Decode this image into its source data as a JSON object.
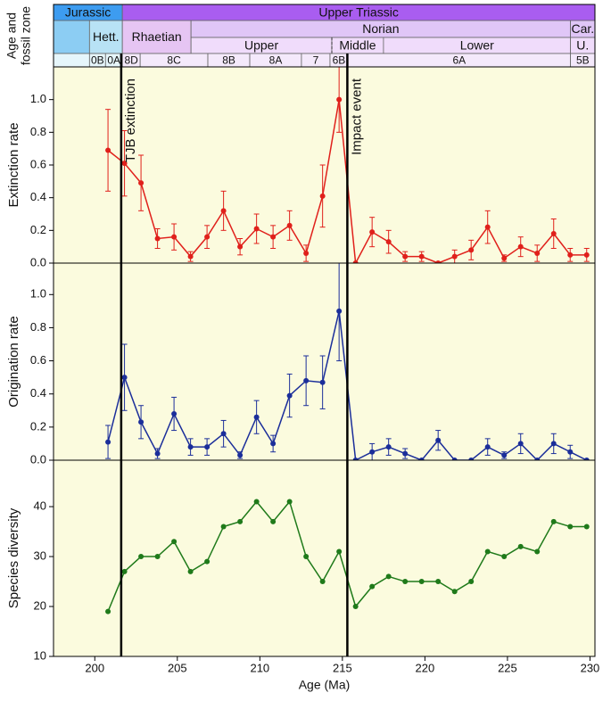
{
  "timescale": {
    "label": [
      "Age and",
      "fossil zone"
    ],
    "rows": [
      [
        {
          "name": "Jurassic",
          "start": 197.5,
          "end": 201.67,
          "color": "#3d9cf0"
        },
        {
          "name": "Upper Triassic",
          "start": 201.67,
          "end": 230.3,
          "color": "#a95df0"
        }
      ],
      [
        {
          "start": 197.5,
          "end": 199.68,
          "color": "#8ccdf3"
        },
        {
          "name": "Hett.",
          "start": 199.68,
          "end": 201.67,
          "color": "#b8e2f5"
        },
        {
          "name": "Rhaetian",
          "start": 201.67,
          "end": 205.83,
          "color": "#e6c5f3"
        },
        {
          "name": "Norian",
          "start": 205.83,
          "end": 228.82,
          "color": "#e0c6f7"
        },
        {
          "name": "Car.",
          "start": 228.82,
          "end": 230.3,
          "color": "#e0c6f7"
        }
      ],
      [
        {
          "name": "Upper",
          "start": 205.83,
          "end": 214.36,
          "color": "#f0dcfb"
        },
        {
          "name": "Middle",
          "start": 214.36,
          "end": 217.49,
          "color": "#f0dcfb",
          "border_left": "dashed"
        },
        {
          "name": "Lower",
          "start": 217.49,
          "end": 228.82,
          "color": "#f0dcfb"
        },
        {
          "name": "U.",
          "start": 228.82,
          "end": 230.3,
          "color": "#f0dcfb"
        }
      ],
      [
        {
          "start": 197.5,
          "end": 199.68,
          "color": "#e6f6fb"
        },
        {
          "name": "0B",
          "start": 199.68,
          "end": 200.65,
          "color": "#e6f6fb"
        },
        {
          "name": "0A",
          "start": 200.65,
          "end": 201.67,
          "color": "#e6f6fb"
        },
        {
          "name": "8D",
          "start": 201.67,
          "end": 202.75,
          "color": "#f4e9fb"
        },
        {
          "name": "8C",
          "start": 202.75,
          "end": 206.85,
          "color": "#f4e9fb"
        },
        {
          "name": "8B",
          "start": 206.85,
          "end": 209.39,
          "color": "#f4e9fb"
        },
        {
          "name": "8A",
          "start": 209.39,
          "end": 212.52,
          "color": "#f4e9fb"
        },
        {
          "name": "7",
          "start": 212.52,
          "end": 214.25,
          "color": "#f4e9fb"
        },
        {
          "name": "6B",
          "start": 214.25,
          "end": 215.33,
          "color": "#f4e9fb"
        },
        {
          "name": "6A",
          "start": 215.33,
          "end": 228.82,
          "color": "#f4e9fb"
        },
        {
          "name": "5B",
          "start": 228.82,
          "end": 230.3,
          "color": "#f4e9fb"
        }
      ]
    ]
  },
  "chart_data": [
    {
      "type": "line",
      "ylabel": "Extinction rate",
      "color": "#e0201b",
      "x": [
        200.8,
        201.8,
        202.8,
        203.8,
        204.8,
        205.8,
        206.8,
        207.8,
        208.8,
        209.8,
        210.8,
        211.8,
        212.8,
        213.8,
        214.8,
        215.8,
        216.8,
        217.8,
        218.8,
        219.8,
        220.8,
        221.8,
        222.8,
        223.8,
        224.8,
        225.8,
        226.8,
        227.8,
        228.8,
        229.8
      ],
      "values": [
        0.69,
        0.61,
        0.49,
        0.15,
        0.16,
        0.04,
        0.16,
        0.32,
        0.1,
        0.21,
        0.16,
        0.23,
        0.06,
        0.41,
        1.0,
        0.0,
        0.19,
        0.13,
        0.04,
        0.04,
        0.0,
        0.04,
        0.08,
        0.22,
        0.03,
        0.1,
        0.06,
        0.18,
        0.05,
        0.05
      ],
      "errors": [
        0.25,
        0.2,
        0.17,
        0.06,
        0.08,
        0.03,
        0.07,
        0.12,
        0.05,
        0.09,
        0.07,
        0.09,
        0.05,
        0.19,
        0.2,
        0,
        0.09,
        0.07,
        0.03,
        0.03,
        0,
        0.04,
        0.06,
        0.1,
        0.02,
        0.06,
        0.05,
        0.09,
        0.04,
        0.04
      ],
      "xlim": [
        197.5,
        230.3
      ],
      "xticks": [
        200,
        205,
        210,
        215,
        220,
        225,
        230
      ],
      "ylim": [
        0,
        1.2
      ],
      "yticks": [
        {
          "value": 0,
          "label": "0.0"
        },
        0.2,
        0.4,
        0.6,
        0.8,
        {
          "value": 1,
          "label": "1.0"
        }
      ],
      "annotations": [
        {
          "x": 201.6,
          "text": "TJB extinction"
        },
        {
          "x": 215.3,
          "text": "Impact event"
        }
      ]
    },
    {
      "type": "line",
      "ylabel": "Origination rate",
      "color": "#1b2e9a",
      "x": [
        200.8,
        201.8,
        202.8,
        203.8,
        204.8,
        205.8,
        206.8,
        207.8,
        208.8,
        209.8,
        210.8,
        211.8,
        212.8,
        213.8,
        214.8,
        215.8,
        216.8,
        217.8,
        218.8,
        219.8,
        220.8,
        221.8,
        222.8,
        223.8,
        224.8,
        225.8,
        226.8,
        227.8,
        228.8,
        229.8
      ],
      "values": [
        0.11,
        0.5,
        0.23,
        0.04,
        0.28,
        0.08,
        0.08,
        0.16,
        0.03,
        0.26,
        0.1,
        0.39,
        0.48,
        0.47,
        0.9,
        0,
        0.05,
        0.08,
        0.04,
        0,
        0.12,
        0,
        0,
        0.08,
        0.03,
        0.1,
        0,
        0.1,
        0.05,
        0
      ],
      "errors": [
        0.1,
        0.2,
        0.1,
        0.03,
        0.1,
        0.05,
        0.05,
        0.08,
        0.02,
        0.1,
        0.05,
        0.13,
        0.15,
        0.16,
        0.3,
        0,
        0.05,
        0.05,
        0.03,
        0,
        0.06,
        0,
        0,
        0.05,
        0.02,
        0.06,
        0,
        0.06,
        0.04,
        0
      ],
      "xlim": [
        197.5,
        230.3
      ],
      "xticks": [
        200,
        205,
        210,
        215,
        220,
        225,
        230
      ],
      "ylim": [
        0,
        1.19
      ],
      "yticks": [
        {
          "value": 0,
          "label": "0.0"
        },
        0.2,
        0.4,
        0.6,
        0.8,
        {
          "value": 1,
          "label": "1.0"
        }
      ]
    },
    {
      "type": "line",
      "ylabel": "Species diversity",
      "xlabel": "Age (Ma)",
      "color": "#1f7a1a",
      "x": [
        200.8,
        201.8,
        202.8,
        203.8,
        204.8,
        205.8,
        206.8,
        207.8,
        208.8,
        209.8,
        210.8,
        211.8,
        212.8,
        213.8,
        214.8,
        215.8,
        216.8,
        217.8,
        218.8,
        219.8,
        220.8,
        221.8,
        222.8,
        223.8,
        224.8,
        225.8,
        226.8,
        227.8,
        228.8,
        229.8
      ],
      "values": [
        19,
        27,
        30,
        30,
        33,
        27,
        29,
        36,
        37,
        41,
        37,
        41,
        30,
        25,
        31,
        20,
        24,
        26,
        25,
        25,
        25,
        23,
        25,
        31,
        30,
        32,
        31,
        37,
        36,
        36
      ],
      "xlim": [
        197.5,
        230.3
      ],
      "xticks": [
        200,
        205,
        210,
        215,
        220,
        225,
        230
      ],
      "ylim": [
        10,
        49.3
      ],
      "yticks": [
        10,
        20,
        30,
        40
      ]
    }
  ]
}
